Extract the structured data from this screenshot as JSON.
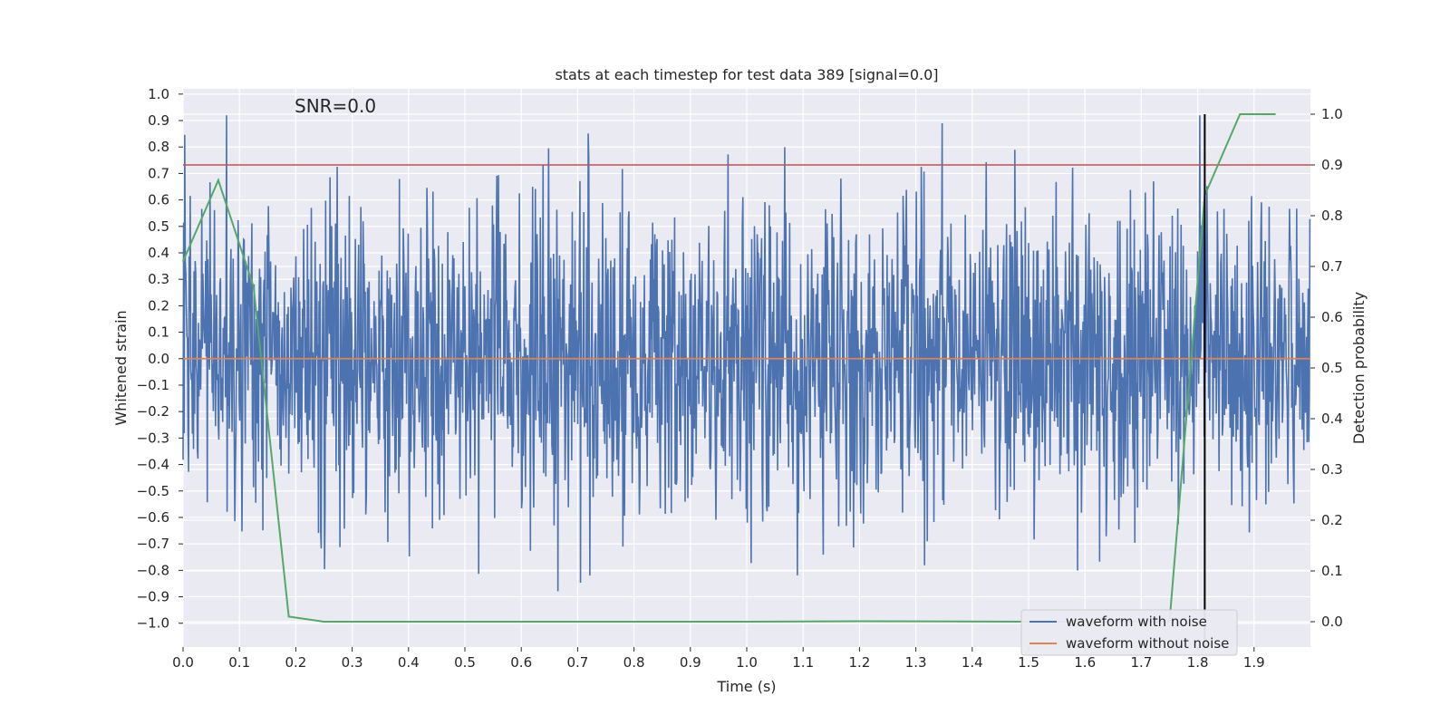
{
  "chart_data": {
    "type": "line",
    "title": "stats at each timestep for test data 389 [signal=0.0]",
    "annotation": "SNR=0.0",
    "xlabel": "Time (s)",
    "ylabel_left": "Whitened strain",
    "ylabel_right": "Detection probability",
    "xlim": [
      0.0,
      2.0
    ],
    "ylim_left": [
      -1.09,
      1.02
    ],
    "ylim_right": [
      -0.05,
      1.05
    ],
    "x_ticks": [
      "0.0",
      "0.1",
      "0.2",
      "0.3",
      "0.4",
      "0.5",
      "0.6",
      "0.7",
      "0.8",
      "0.9",
      "1.0",
      "1.1",
      "1.2",
      "1.3",
      "1.4",
      "1.5",
      "1.6",
      "1.7",
      "1.8",
      "1.9"
    ],
    "y_left_ticks": [
      "1.0",
      "0.9",
      "0.8",
      "0.7",
      "0.6",
      "0.5",
      "0.4",
      "0.3",
      "0.2",
      "0.1",
      "0.0",
      "−0.1",
      "−0.2",
      "−0.3",
      "−0.4",
      "−0.5",
      "−0.6",
      "−0.7",
      "−0.8",
      "−0.9",
      "−1.0"
    ],
    "y_right_ticks": [
      "1.0",
      "0.9",
      "0.8",
      "0.7",
      "0.6",
      "0.5",
      "0.4",
      "0.3",
      "0.2",
      "0.1",
      "0.0"
    ],
    "series": [
      {
        "name": "waveform with noise",
        "color": "#4c72b0",
        "axis": "left",
        "points": 2048,
        "description": "whitened noise, amplitude roughly within -0.95 to 0.92"
      },
      {
        "name": "waveform without noise",
        "color": "#dd8452",
        "axis": "left",
        "x": [
          0.0,
          2.0
        ],
        "y": [
          0.0,
          0.0
        ]
      },
      {
        "name": "detection probability",
        "color": "#55a868",
        "axis": "right",
        "x": [
          0.0,
          0.0625,
          0.125,
          0.1875,
          0.25,
          0.5,
          0.75,
          1.0,
          1.2,
          1.5,
          1.75,
          1.8125,
          1.875,
          1.9375
        ],
        "y": [
          0.71,
          0.87,
          0.66,
          0.01,
          0.0,
          0.0,
          0.0,
          0.0,
          0.001,
          0.0,
          0.0,
          0.84,
          1.0,
          1.0
        ]
      }
    ],
    "threshold_line": {
      "axis": "right",
      "value": 0.9,
      "color": "#c44e52"
    },
    "vertical_marker": {
      "x": 1.8125,
      "color": "#000000",
      "y_from": -0.05,
      "y_to": 1.0
    },
    "legend": {
      "position": "bottom-right",
      "entries": [
        {
          "label": "waveform with noise",
          "color": "#4c72b0"
        },
        {
          "label": "waveform without noise",
          "color": "#dd8452"
        }
      ]
    },
    "grid": true,
    "background": "#eaeaf2"
  }
}
